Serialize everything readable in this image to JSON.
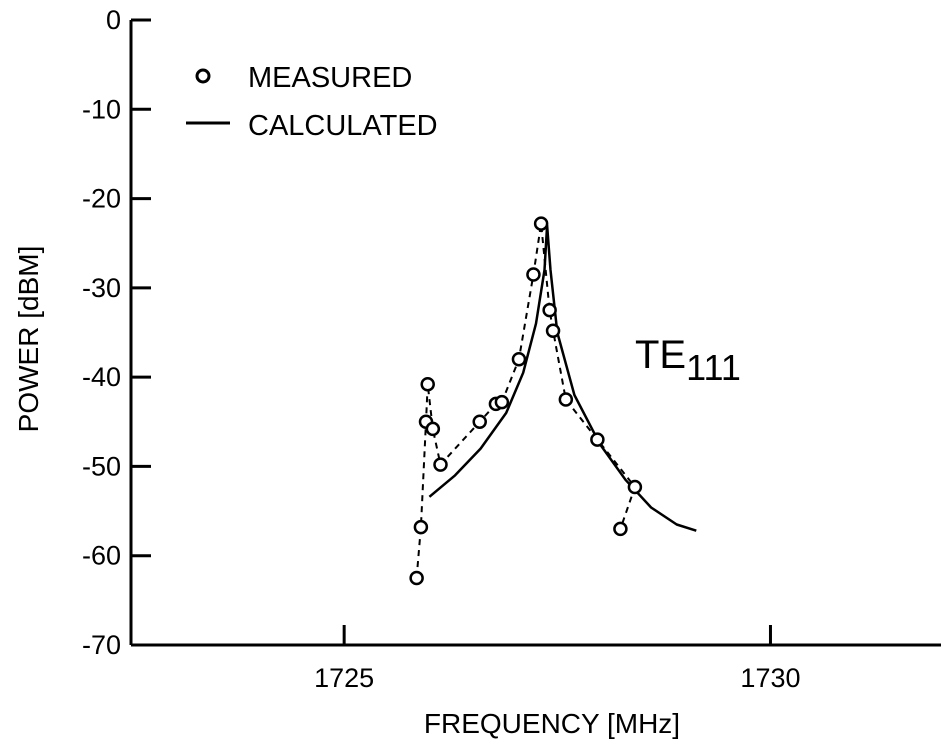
{
  "chart_data": {
    "type": "line",
    "xlabel": "FREQUENCY  [MHz]",
    "ylabel": "POWER  [dBM]",
    "xlim": [
      1722.5,
      1732.0
    ],
    "ylim": [
      -70,
      0
    ],
    "xticks": [
      1725,
      1730
    ],
    "xtick_labels": [
      "1725",
      "1730"
    ],
    "yticks": [
      0,
      -10,
      -20,
      -30,
      -40,
      -50,
      -60,
      -70
    ],
    "ytick_labels": [
      "0",
      "-10",
      "-20",
      "-30",
      "-40",
      "-50",
      "-60",
      "-70"
    ],
    "legend": {
      "placement": "top-left",
      "entries": [
        {
          "label": "MEASURED",
          "marker": "circle"
        },
        {
          "label": "CALCULATED",
          "marker": "line"
        }
      ]
    },
    "annotation": {
      "text": "TE",
      "subscript": "111"
    },
    "series": [
      {
        "name": "MEASURED",
        "style": "circles-dashed",
        "x": [
          1725.85,
          1725.9,
          1725.96,
          1725.98,
          1726.04,
          1726.13,
          1726.59,
          1726.78,
          1726.85,
          1727.05,
          1727.22,
          1727.31,
          1727.41,
          1727.45,
          1727.6,
          1727.97,
          1728.41,
          1728.24
        ],
        "y": [
          -62.5,
          -56.8,
          -45.0,
          -40.8,
          -45.8,
          -49.8,
          -45.0,
          -43.0,
          -42.8,
          -38.0,
          -28.5,
          -22.8,
          -32.5,
          -34.8,
          -42.5,
          -47.0,
          -52.3,
          -57.0
        ]
      },
      {
        "name": "CALCULATED",
        "style": "solid-line",
        "x": [
          1726.0,
          1726.3,
          1726.6,
          1726.9,
          1727.1,
          1727.25,
          1727.35,
          1727.38,
          1727.42,
          1727.5,
          1727.7,
          1728.0,
          1728.3,
          1728.6,
          1728.9,
          1729.13
        ],
        "y": [
          -53.4,
          -51.0,
          -48.0,
          -44.0,
          -39.5,
          -34.0,
          -28.0,
          -23.0,
          -28.0,
          -35.0,
          -42.0,
          -47.5,
          -51.5,
          -54.6,
          -56.5,
          -57.2
        ]
      }
    ]
  }
}
